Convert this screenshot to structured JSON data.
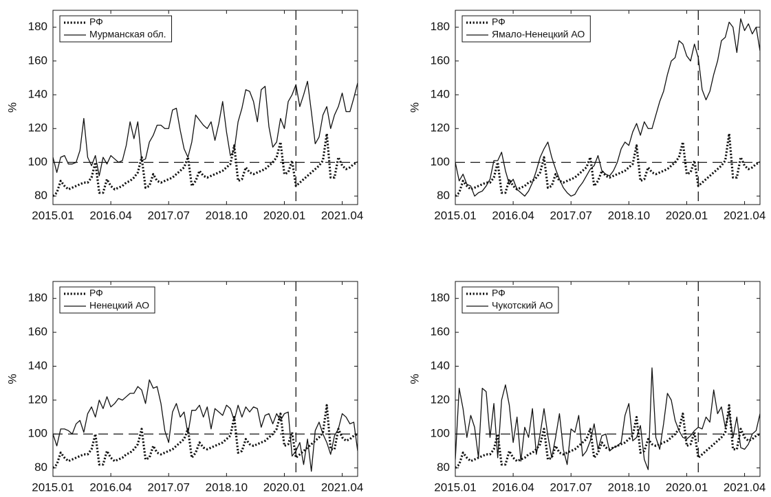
{
  "chart_data": [
    {
      "type": "line",
      "y_label": "%",
      "ylim": [
        75,
        190
      ],
      "yticks": [
        80,
        100,
        120,
        140,
        160,
        180
      ],
      "xlim": [
        0,
        79
      ],
      "categories": [
        "2015.01",
        null,
        null,
        null,
        null,
        null,
        null,
        null,
        null,
        null,
        null,
        null,
        null,
        null,
        null,
        "2016.04",
        null,
        null,
        null,
        null,
        null,
        null,
        null,
        null,
        null,
        null,
        null,
        null,
        null,
        null,
        "2017.07",
        null,
        null,
        null,
        null,
        null,
        null,
        null,
        null,
        null,
        null,
        null,
        null,
        null,
        null,
        "2018.10",
        null,
        null,
        null,
        null,
        null,
        null,
        null,
        null,
        null,
        null,
        null,
        null,
        null,
        null,
        "2020.01",
        null,
        null,
        null,
        null,
        null,
        null,
        null,
        null,
        null,
        null,
        null,
        null,
        null,
        null,
        "2021.04",
        null,
        null,
        null,
        null
      ],
      "hline_y": 100,
      "vline_x": 63,
      "legend": "upper left",
      "series": [
        {
          "name": "РФ",
          "color": "#111111",
          "style": "dotted",
          "values": [
            80,
            82,
            89,
            86,
            84,
            85,
            86,
            87,
            88,
            88,
            91,
            100,
            82,
            82,
            90,
            86,
            84,
            85,
            86,
            88,
            89,
            91,
            94,
            103,
            85,
            86,
            93,
            89,
            88,
            89,
            90,
            91,
            93,
            95,
            97,
            103,
            86,
            89,
            95,
            92,
            91,
            92,
            93,
            94,
            95,
            97,
            99,
            110,
            89,
            90,
            97,
            94,
            93,
            94,
            95,
            96,
            98,
            100,
            103,
            112,
            93,
            94,
            101,
            86,
            88,
            90,
            92,
            94,
            96,
            98,
            101,
            117,
            91,
            91,
            103,
            98,
            96,
            97,
            99,
            100
          ]
        },
        {
          "name": "Мурманская обл.",
          "color": "#111111",
          "style": "solid",
          "values": [
            103,
            94,
            103,
            104,
            99,
            99,
            100,
            107,
            126,
            103,
            98,
            104,
            92,
            103,
            99,
            104,
            102,
            100,
            101,
            110,
            124,
            114,
            124,
            101,
            102,
            112,
            116,
            122,
            122,
            120,
            120,
            131,
            132,
            119,
            108,
            103,
            112,
            128,
            125,
            122,
            120,
            124,
            113,
            123,
            136,
            118,
            104,
            107,
            124,
            132,
            143,
            142,
            136,
            124,
            143,
            145,
            121,
            109,
            112,
            126,
            120,
            136,
            140,
            146,
            133,
            140,
            148,
            130,
            111,
            115,
            128,
            133,
            120,
            128,
            133,
            141,
            130,
            130,
            138,
            147
          ]
        }
      ]
    },
    {
      "type": "line",
      "y_label": "%",
      "ylim": [
        75,
        190
      ],
      "yticks": [
        80,
        100,
        120,
        140,
        160,
        180
      ],
      "xlim": [
        0,
        79
      ],
      "categories": [
        "2015.01",
        null,
        null,
        null,
        null,
        null,
        null,
        null,
        null,
        null,
        null,
        null,
        null,
        null,
        null,
        "2016.04",
        null,
        null,
        null,
        null,
        null,
        null,
        null,
        null,
        null,
        null,
        null,
        null,
        null,
        null,
        "2017.07",
        null,
        null,
        null,
        null,
        null,
        null,
        null,
        null,
        null,
        null,
        null,
        null,
        null,
        null,
        "2018.10",
        null,
        null,
        null,
        null,
        null,
        null,
        null,
        null,
        null,
        null,
        null,
        null,
        null,
        null,
        "2020.01",
        null,
        null,
        null,
        null,
        null,
        null,
        null,
        null,
        null,
        null,
        null,
        null,
        null,
        null,
        "2021.04",
        null,
        null,
        null,
        null
      ],
      "hline_y": 100,
      "vline_x": 63,
      "legend": "upper left",
      "series": [
        {
          "name": "РФ",
          "color": "#111111",
          "style": "dotted",
          "values": [
            80,
            82,
            89,
            86,
            84,
            85,
            86,
            87,
            88,
            88,
            91,
            100,
            82,
            82,
            90,
            86,
            84,
            85,
            86,
            88,
            89,
            91,
            94,
            103,
            85,
            86,
            93,
            89,
            88,
            89,
            90,
            91,
            93,
            95,
            97,
            103,
            86,
            89,
            95,
            92,
            91,
            92,
            93,
            94,
            95,
            97,
            99,
            110,
            89,
            90,
            97,
            94,
            93,
            94,
            95,
            96,
            98,
            100,
            103,
            112,
            93,
            94,
            101,
            86,
            88,
            90,
            92,
            94,
            96,
            98,
            101,
            117,
            91,
            91,
            103,
            98,
            96,
            97,
            99,
            100
          ]
        },
        {
          "name": "Ямало-Ненецкий АО",
          "color": "#111111",
          "style": "solid",
          "values": [
            100,
            89,
            93,
            87,
            86,
            80,
            82,
            83,
            86,
            90,
            101,
            101,
            106,
            95,
            87,
            90,
            84,
            82,
            80,
            83,
            88,
            95,
            103,
            108,
            112,
            103,
            96,
            90,
            85,
            82,
            80,
            81,
            85,
            88,
            92,
            96,
            98,
            104,
            95,
            93,
            92,
            95,
            100,
            108,
            112,
            110,
            118,
            123,
            116,
            124,
            120,
            120,
            128,
            136,
            142,
            152,
            160,
            162,
            172,
            170,
            163,
            160,
            170,
            162,
            143,
            137,
            142,
            152,
            160,
            172,
            174,
            183,
            180,
            165,
            185,
            178,
            182,
            176,
            180,
            166
          ]
        }
      ]
    },
    {
      "type": "line",
      "y_label": "%",
      "ylim": [
        75,
        190
      ],
      "yticks": [
        80,
        100,
        120,
        140,
        160,
        180
      ],
      "xlim": [
        0,
        79
      ],
      "categories": [
        "2015.01",
        null,
        null,
        null,
        null,
        null,
        null,
        null,
        null,
        null,
        null,
        null,
        null,
        null,
        null,
        "2016.04",
        null,
        null,
        null,
        null,
        null,
        null,
        null,
        null,
        null,
        null,
        null,
        null,
        null,
        null,
        "2017.07",
        null,
        null,
        null,
        null,
        null,
        null,
        null,
        null,
        null,
        null,
        null,
        null,
        null,
        null,
        "2018.10",
        null,
        null,
        null,
        null,
        null,
        null,
        null,
        null,
        null,
        null,
        null,
        null,
        null,
        null,
        "2020.01",
        null,
        null,
        null,
        null,
        null,
        null,
        null,
        null,
        null,
        null,
        null,
        null,
        null,
        null,
        "2021.04",
        null,
        null,
        null,
        null
      ],
      "hline_y": 100,
      "vline_x": 63,
      "legend": "upper left",
      "series": [
        {
          "name": "РФ",
          "color": "#111111",
          "style": "dotted",
          "values": [
            80,
            82,
            89,
            86,
            84,
            85,
            86,
            87,
            88,
            88,
            91,
            100,
            82,
            82,
            90,
            86,
            84,
            85,
            86,
            88,
            89,
            91,
            94,
            103,
            85,
            86,
            93,
            89,
            88,
            89,
            90,
            91,
            93,
            95,
            97,
            103,
            86,
            89,
            95,
            92,
            91,
            92,
            93,
            94,
            95,
            97,
            99,
            110,
            89,
            90,
            97,
            94,
            93,
            94,
            95,
            96,
            98,
            100,
            103,
            112,
            93,
            94,
            101,
            86,
            88,
            90,
            92,
            94,
            96,
            98,
            101,
            117,
            91,
            91,
            103,
            98,
            96,
            97,
            99,
            100
          ]
        },
        {
          "name": "Ненецкий АО",
          "color": "#111111",
          "style": "solid",
          "values": [
            100,
            93,
            103,
            103,
            102,
            100,
            106,
            108,
            101,
            112,
            116,
            110,
            120,
            115,
            122,
            116,
            118,
            121,
            120,
            122,
            124,
            124,
            128,
            126,
            118,
            132,
            127,
            128,
            118,
            102,
            95,
            113,
            118,
            110,
            113,
            100,
            114,
            114,
            117,
            110,
            116,
            103,
            115,
            113,
            111,
            117,
            115,
            108,
            117,
            110,
            116,
            113,
            116,
            115,
            104,
            111,
            112,
            106,
            112,
            108,
            112,
            113,
            87,
            90,
            95,
            82,
            97,
            78,
            102,
            107,
            100,
            95,
            88,
            99,
            103,
            112,
            110,
            106,
            107,
            90
          ]
        }
      ]
    },
    {
      "type": "line",
      "y_label": "%",
      "ylim": [
        75,
        190
      ],
      "yticks": [
        80,
        100,
        120,
        140,
        160,
        180
      ],
      "xlim": [
        0,
        79
      ],
      "categories": [
        "2015.01",
        null,
        null,
        null,
        null,
        null,
        null,
        null,
        null,
        null,
        null,
        null,
        null,
        null,
        null,
        "2016.04",
        null,
        null,
        null,
        null,
        null,
        null,
        null,
        null,
        null,
        null,
        null,
        null,
        null,
        null,
        "2017.07",
        null,
        null,
        null,
        null,
        null,
        null,
        null,
        null,
        null,
        null,
        null,
        null,
        null,
        null,
        "2018.10",
        null,
        null,
        null,
        null,
        null,
        null,
        null,
        null,
        null,
        null,
        null,
        null,
        null,
        null,
        "2020.01",
        null,
        null,
        null,
        null,
        null,
        null,
        null,
        null,
        null,
        null,
        null,
        null,
        null,
        null,
        "2021.04",
        null,
        null,
        null,
        null
      ],
      "hline_y": 100,
      "vline_x": 63,
      "legend": "upper left",
      "series": [
        {
          "name": "РФ",
          "color": "#111111",
          "style": "dotted",
          "values": [
            80,
            82,
            89,
            86,
            84,
            85,
            86,
            87,
            88,
            88,
            91,
            100,
            82,
            82,
            90,
            86,
            84,
            85,
            86,
            88,
            89,
            91,
            94,
            103,
            85,
            86,
            93,
            89,
            88,
            89,
            90,
            91,
            93,
            95,
            97,
            103,
            86,
            89,
            95,
            92,
            91,
            92,
            93,
            94,
            95,
            97,
            99,
            110,
            89,
            90,
            97,
            94,
            93,
            94,
            95,
            96,
            98,
            100,
            103,
            112,
            93,
            94,
            101,
            86,
            88,
            90,
            92,
            94,
            96,
            98,
            101,
            117,
            91,
            91,
            103,
            98,
            96,
            97,
            99,
            100
          ]
        },
        {
          "name": "Чукотский АО",
          "color": "#111111",
          "style": "solid",
          "values": [
            85,
            127,
            115,
            98,
            111,
            104,
            86,
            127,
            125,
            98,
            118,
            86,
            120,
            129,
            117,
            95,
            110,
            84,
            104,
            98,
            115,
            88,
            100,
            115,
            99,
            86,
            98,
            112,
            91,
            82,
            103,
            101,
            111,
            87,
            90,
            96,
            106,
            91,
            99,
            100,
            90,
            92,
            93,
            95,
            111,
            118,
            96,
            98,
            105,
            85,
            79,
            139,
            98,
            91,
            106,
            124,
            120,
            108,
            102,
            98,
            97,
            99,
            102,
            104,
            103,
            110,
            107,
            126,
            112,
            116,
            104,
            113,
            98,
            110,
            92,
            91,
            94,
            100,
            102,
            112
          ]
        }
      ]
    }
  ]
}
